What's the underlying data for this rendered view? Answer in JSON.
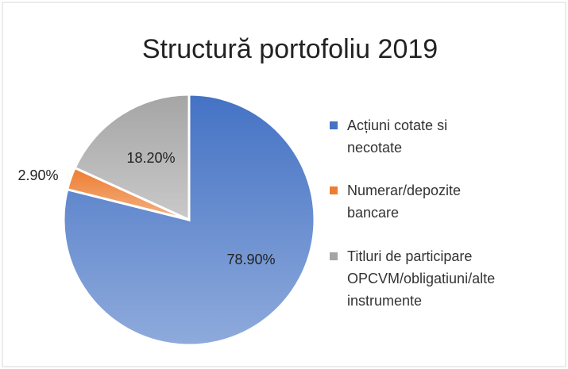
{
  "chart_data": {
    "type": "pie",
    "title": "Structură portofoliu 2019",
    "categories": [
      "Acțiuni cotate si necotate",
      "Numerar/depozite bancare",
      "Titluri de participare OPCVM/obligatiuni/alte instrumente"
    ],
    "values": [
      78.9,
      2.9,
      18.2
    ],
    "value_labels": [
      "78.90%",
      "2.90%",
      "18.20%"
    ],
    "colors": [
      "#4472c4",
      "#ed7d31",
      "#a5a5a5"
    ],
    "legend": "right"
  }
}
